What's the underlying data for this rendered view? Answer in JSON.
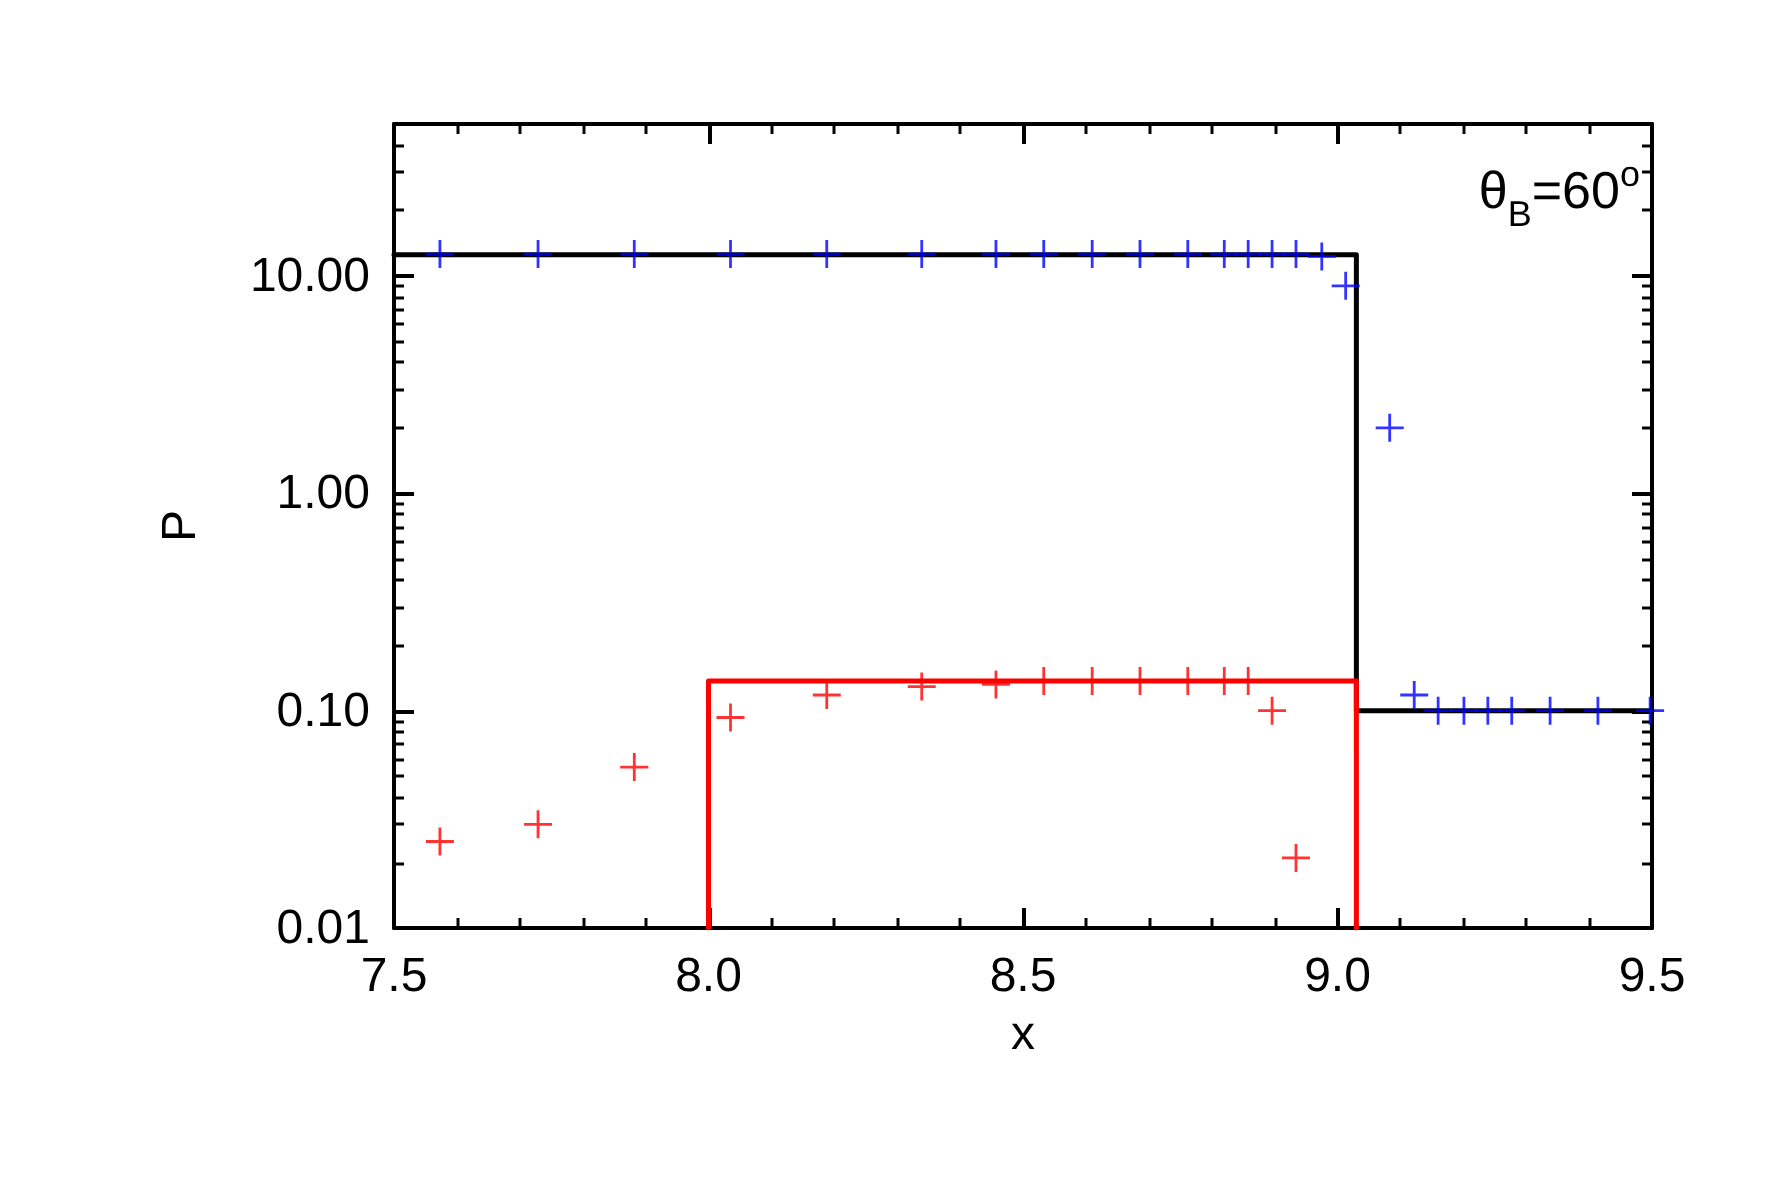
{
  "chart_data": {
    "type": "scatter",
    "xlabel": "x",
    "ylabel": "P",
    "annotations": [
      "θ$_{B}$=60$^{o}$"
    ],
    "log": "y",
    "xlim": [
      7.5,
      9.5
    ],
    "xticks": [
      {
        "value": 7.5,
        "label": "7.5"
      },
      {
        "value": 8,
        "label": "8.0"
      },
      {
        "value": 8.5,
        "label": "8.5"
      },
      {
        "value": 9,
        "label": "9.0"
      },
      {
        "value": 9.5,
        "label": "9.5"
      }
    ],
    "ylim": [
      0.01,
      50
    ],
    "yticks": [
      {
        "value": 0.01,
        "label": "0.01"
      },
      {
        "value": 0.1,
        "label": "0.10"
      },
      {
        "value": 1,
        "label": "1.00"
      },
      {
        "value": 10,
        "label": "10.00"
      }
    ],
    "grid": false,
    "marker": "cross",
    "series": [
      {
        "type": "line",
        "color": "#000000",
        "marker": "none",
        "x": [
          7.5,
          9.03,
          9.03,
          9.5
        ],
        "values": [
          12.5,
          12.5,
          0.1,
          0.1
        ]
      },
      {
        "type": "line",
        "color": "#ff0000",
        "marker": "none",
        "x": [
          8.0,
          8.0,
          9.03,
          9.03
        ],
        "values": [
          0.01,
          0.137,
          0.137,
          0.01
        ]
      },
      {
        "color": "#0000ff",
        "x": [
          7.573,
          7.729,
          7.882,
          8.035,
          8.188,
          8.339,
          8.457,
          8.533,
          8.61,
          8.686,
          8.762,
          8.82,
          8.858,
          8.896,
          8.934,
          8.975,
          9.013,
          9.083,
          9.122,
          9.16,
          9.201,
          9.239,
          9.277,
          9.338,
          9.414,
          9.497
        ],
        "values": [
          12.6,
          12.6,
          12.6,
          12.6,
          12.6,
          12.6,
          12.6,
          12.6,
          12.6,
          12.6,
          12.6,
          12.6,
          12.6,
          12.6,
          12.6,
          12.3,
          9.0,
          2.0,
          0.118,
          0.1,
          0.1,
          0.1,
          0.1,
          0.1,
          0.1,
          0.1
        ]
      },
      {
        "color": "#ff0000",
        "x": [
          7.573,
          7.729,
          7.882,
          8.035,
          8.188,
          8.339,
          8.457,
          8.533,
          8.61,
          8.686,
          8.762,
          8.82,
          8.858,
          8.896,
          8.934
        ],
        "values": [
          0.025,
          0.03,
          0.055,
          0.093,
          0.118,
          0.129,
          0.132,
          0.137,
          0.137,
          0.137,
          0.137,
          0.137,
          0.137,
          0.1,
          0.021
        ]
      }
    ]
  }
}
